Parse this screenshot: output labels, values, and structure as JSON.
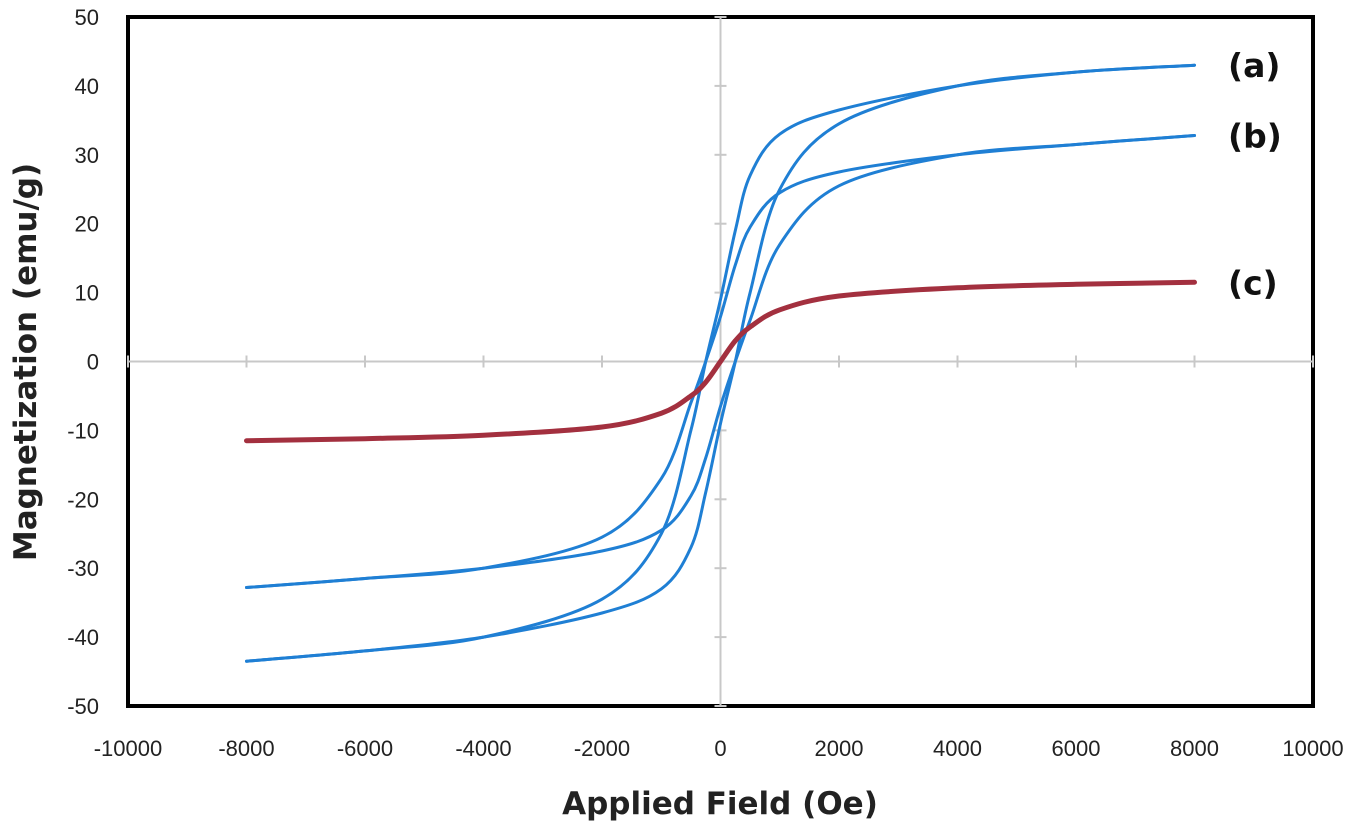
{
  "chart_data": {
    "type": "line",
    "xlabel": "Applied Field (Oe)",
    "ylabel": "Magnetization (emu/g)",
    "xlim": [
      -10000,
      10000
    ],
    "ylim": [
      -50,
      50
    ],
    "x_ticks": [
      -10000,
      -8000,
      -6000,
      -4000,
      -2000,
      0,
      2000,
      4000,
      6000,
      8000,
      10000
    ],
    "y_ticks": [
      -50,
      -40,
      -30,
      -20,
      -10,
      0,
      10,
      20,
      30,
      40,
      50
    ],
    "grid": false,
    "legend": "none",
    "series": [
      {
        "label": "(a)",
        "color": "#1f7fd4",
        "hysteresis": true,
        "x": [
          -8000,
          -6000,
          -4000,
          -2000,
          -1000,
          -500,
          -250,
          0,
          250,
          500,
          1000,
          2000,
          4000,
          6000,
          8000
        ],
        "y_upper": [
          -43.5,
          -42.0,
          -40.0,
          -34.5,
          -25.0,
          -10.0,
          0.0,
          9.0,
          19.0,
          27.0,
          33.0,
          36.5,
          40.0,
          42.0,
          43.0
        ],
        "y_lower": [
          -43.5,
          -42.0,
          -40.0,
          -36.5,
          -33.0,
          -27.0,
          -19.0,
          -9.0,
          0.0,
          10.0,
          25.0,
          34.5,
          40.0,
          42.0,
          43.0
        ]
      },
      {
        "label": "(b)",
        "color": "#1f7fd4",
        "hysteresis": true,
        "x": [
          -8000,
          -6000,
          -4000,
          -2000,
          -1000,
          -500,
          -250,
          0,
          250,
          500,
          1000,
          2000,
          4000,
          6000,
          8000
        ],
        "y_upper": [
          -32.8,
          -31.5,
          -30.0,
          -25.5,
          -17.0,
          -6.0,
          0.0,
          6.5,
          14.0,
          19.5,
          24.5,
          27.5,
          30.0,
          31.5,
          32.8
        ],
        "y_lower": [
          -32.8,
          -31.5,
          -30.0,
          -27.5,
          -24.5,
          -19.5,
          -14.0,
          -6.5,
          0.0,
          6.0,
          17.0,
          25.5,
          30.0,
          31.5,
          32.8
        ]
      },
      {
        "label": "(c)",
        "color": "#a3303f",
        "hysteresis": false,
        "x": [
          -8000,
          -6000,
          -4000,
          -2000,
          -1000,
          -500,
          -250,
          0,
          250,
          500,
          1000,
          2000,
          4000,
          6000,
          8000
        ],
        "y": [
          -11.5,
          -11.2,
          -10.7,
          -9.5,
          -7.5,
          -5.0,
          -3.0,
          0.0,
          3.0,
          5.0,
          7.5,
          9.5,
          10.7,
          11.2,
          11.5
        ]
      }
    ]
  }
}
